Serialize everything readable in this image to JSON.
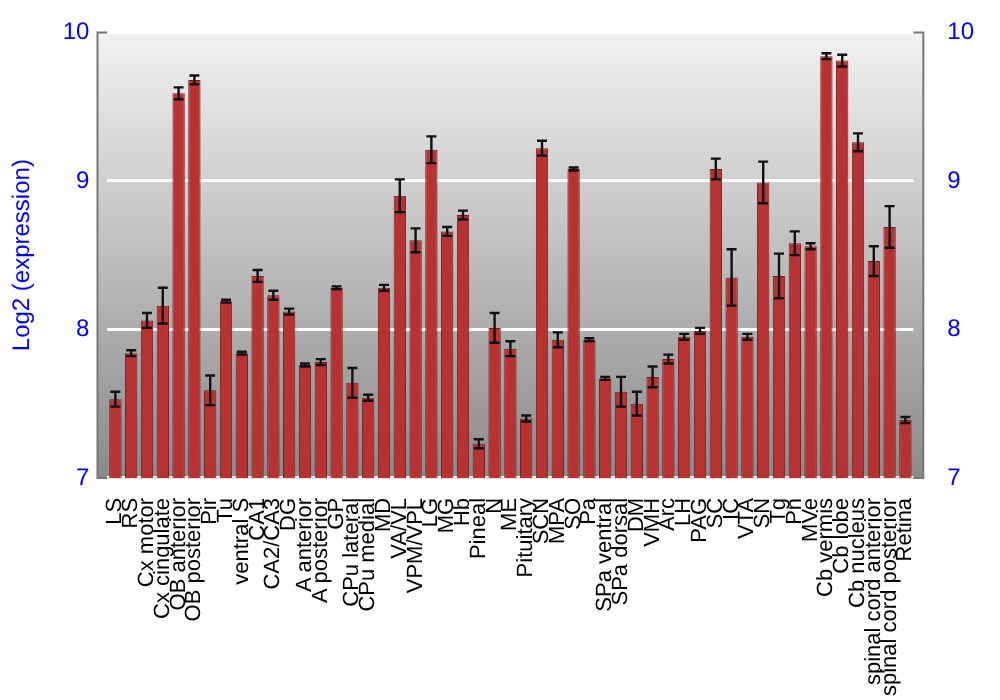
{
  "chart_data": {
    "type": "bar",
    "ylabel": "Log2 (expression)",
    "categories": [
      "LS",
      "RS",
      "Cx motor",
      "Cx cingulate",
      "OB anterior",
      "OB posterior",
      "Pir",
      "Tu",
      "ventral S",
      "CA1",
      "CA2/CA3",
      "DG",
      "A anterior",
      "A posterior",
      "GP",
      "CPu lateral",
      "CPu medial",
      "MD",
      "VA/VL",
      "VPM/VPL",
      "LG",
      "MG",
      "Hb",
      "Pineal",
      "N",
      "ME",
      "Pituitary",
      "SCN",
      "MPA",
      "SO",
      "Pa",
      "SPa ventral",
      "SPa dorsal",
      "DM",
      "VMH",
      "Arc",
      "LH",
      "PAG",
      "SC",
      "IC",
      "VTA",
      "SN",
      "Tg",
      "Pn",
      "MVe",
      "Cb vermis",
      "Cb lobe",
      "Cb nucleus",
      "spinal cord anterior",
      "spinal cord posterior",
      "Retina"
    ],
    "values": [
      7.53,
      7.84,
      8.06,
      8.16,
      9.59,
      9.68,
      7.59,
      8.19,
      7.84,
      8.36,
      8.23,
      8.12,
      7.76,
      7.78,
      8.28,
      7.64,
      7.54,
      8.28,
      8.9,
      8.6,
      9.21,
      8.66,
      8.77,
      7.23,
      8.01,
      7.87,
      7.4,
      9.22,
      7.93,
      9.08,
      7.93,
      7.67,
      7.58,
      7.5,
      7.68,
      7.8,
      7.95,
      7.99,
      9.08,
      8.35,
      7.95,
      8.99,
      8.36,
      8.58,
      8.56,
      9.84,
      9.81,
      9.26,
      8.46,
      8.69,
      7.39
    ],
    "errors": [
      0.05,
      0.02,
      0.05,
      0.12,
      0.04,
      0.03,
      0.1,
      0.01,
      0.01,
      0.04,
      0.03,
      0.02,
      0.01,
      0.02,
      0.01,
      0.1,
      0.02,
      0.02,
      0.11,
      0.08,
      0.09,
      0.03,
      0.03,
      0.03,
      0.1,
      0.05,
      0.02,
      0.05,
      0.05,
      0.01,
      0.01,
      0.01,
      0.1,
      0.08,
      0.07,
      0.03,
      0.02,
      0.02,
      0.07,
      0.19,
      0.02,
      0.14,
      0.15,
      0.08,
      0.02,
      0.02,
      0.04,
      0.06,
      0.1,
      0.14,
      0.02
    ],
    "color": "#b83232",
    "ylim": [
      7,
      10
    ],
    "yticks": [
      7,
      8,
      9,
      10
    ],
    "y2lim": [
      7,
      10
    ],
    "y2ticks": [
      7,
      8,
      9,
      10
    ],
    "grid": "y"
  }
}
